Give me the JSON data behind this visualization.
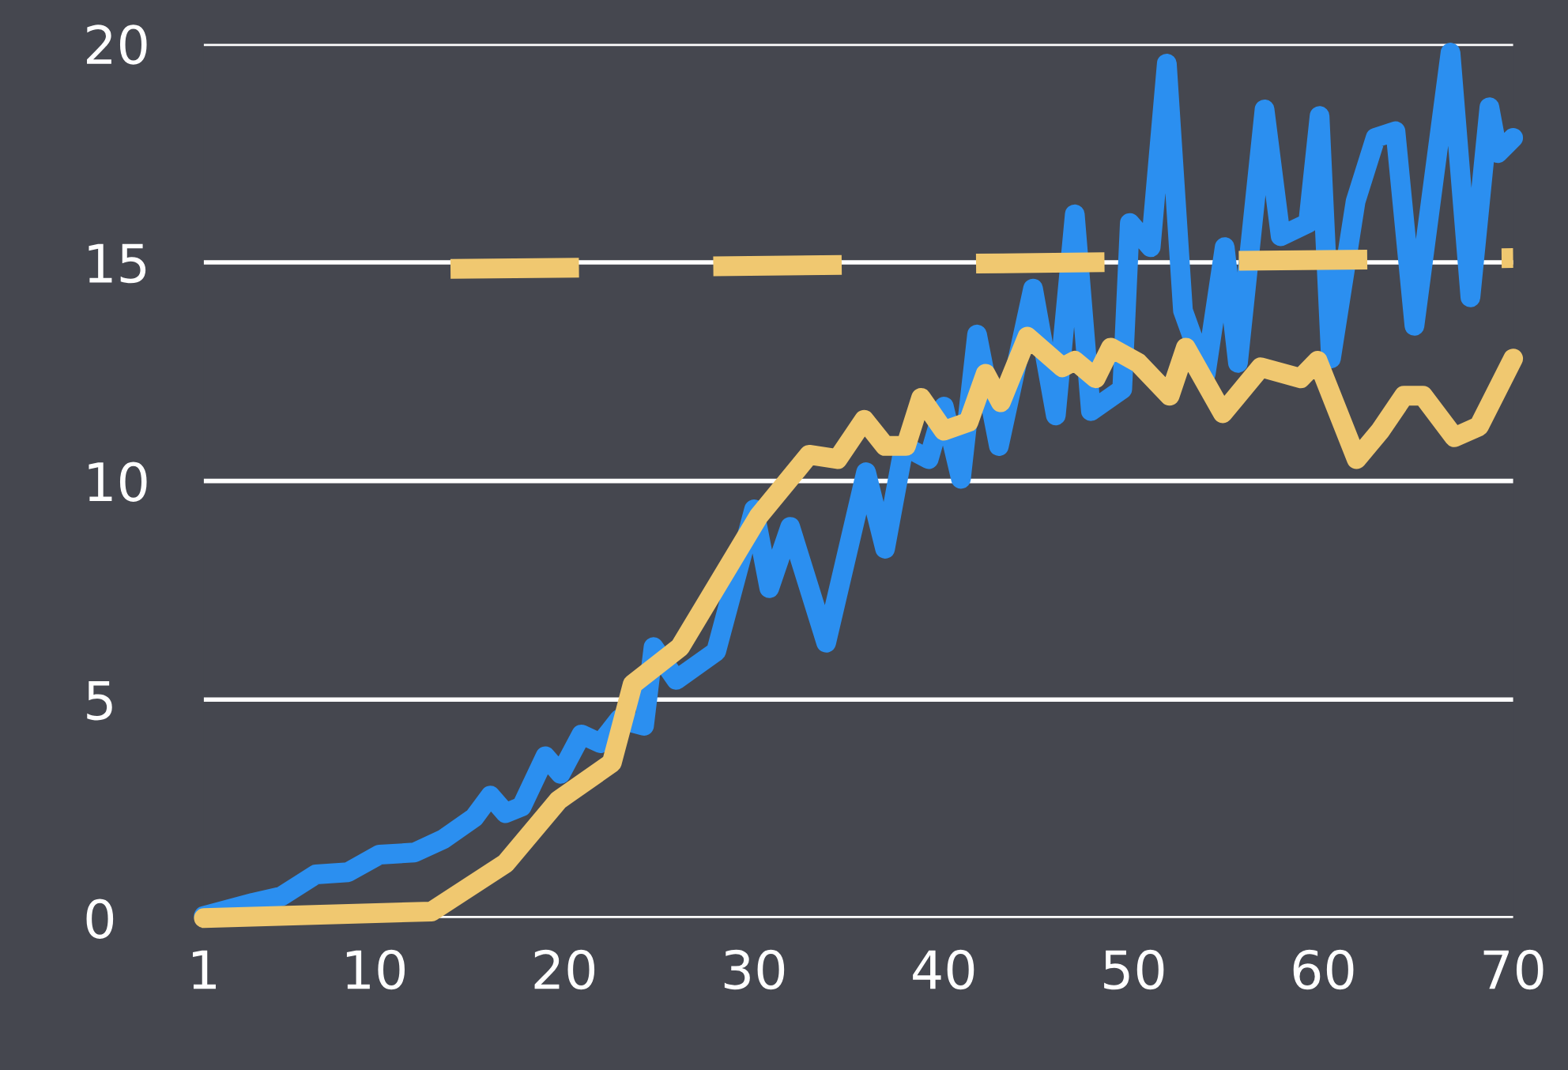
{
  "chart_data": {
    "type": "line",
    "xlim": [
      1,
      70
    ],
    "xticks": [
      1,
      10,
      20,
      30,
      40,
      50,
      60,
      70
    ],
    "ylim": [
      0,
      20
    ],
    "yticks": [
      0,
      5,
      10,
      15,
      20
    ],
    "grid": "y",
    "legend": false,
    "series": [
      {
        "color": "#2b8ff0",
        "x": [
          1,
          3.6,
          5.1,
          6.9,
          8.6,
          10.25,
          12.1,
          13.6,
          15.25,
          16.1,
          16.9,
          17.75,
          19,
          19.8,
          20.9,
          21.9,
          22.9,
          24.2,
          24.7,
          25.9,
          28,
          30,
          30.8,
          31.9,
          33.8,
          35.9,
          36.9,
          37.9,
          39.2,
          40,
          40.9,
          41.75,
          42.9,
          44.7,
          45.9,
          46.9,
          47.75,
          49.4,
          49.8,
          50.9,
          51.75,
          52.6,
          53.8,
          54.8,
          55.5,
          56.9,
          57.75,
          59.2,
          59.8,
          60.4,
          61.7,
          62.75,
          63.8,
          64.8,
          66.7,
          67.75,
          68.75,
          69.2,
          70
        ],
        "values": [
          0.05,
          0.35,
          0.5,
          1.0,
          1.05,
          1.45,
          1.5,
          1.8,
          2.3,
          2.8,
          2.4,
          2.55,
          3.7,
          3.3,
          4.2,
          4.0,
          4.55,
          4.4,
          6.2,
          5.45,
          6.1,
          9.35,
          7.55,
          8.95,
          6.3,
          10.2,
          8.45,
          10.8,
          10.5,
          11.7,
          10.05,
          13.35,
          10.8,
          14.4,
          11.5,
          16.1,
          11.6,
          12.1,
          15.9,
          15.35,
          19.55,
          13.9,
          12.45,
          15.35,
          12.7,
          18.5,
          15.6,
          15.9,
          18.35,
          12.8,
          16.4,
          17.85,
          18.0,
          13.55,
          19.8,
          14.2,
          18.55,
          17.5,
          17.85
        ]
      },
      {
        "color": "#f0c870",
        "x": [
          1,
          13,
          16.9,
          19.7,
          22.5,
          23.6,
          26.1,
          30.25,
          32.9,
          34.4,
          35.8,
          36.9,
          38,
          38.8,
          40,
          41.3,
          42.2,
          43,
          44.4,
          46.25,
          46.9,
          48,
          48.8,
          50.25,
          51.9,
          52.75,
          54.7,
          56.7,
          58.8,
          59.7,
          61.75,
          63,
          64.25,
          65.25,
          66.9,
          68.2,
          70
        ],
        "values": [
          0,
          0.15,
          1.25,
          2.7,
          3.55,
          5.35,
          6.2,
          9.2,
          10.6,
          10.5,
          11.4,
          10.8,
          10.8,
          11.9,
          11.15,
          11.35,
          12.45,
          11.8,
          13.3,
          12.6,
          12.75,
          12.35,
          13.05,
          12.7,
          11.95,
          13.05,
          11.55,
          12.6,
          12.35,
          12.75,
          10.5,
          11.15,
          11.95,
          11.95,
          11.0,
          11.25,
          12.8
        ]
      },
      {
        "color": "#f0c870",
        "line_style": "dashed",
        "x": [
          14,
          70
        ],
        "values": [
          14.85,
          15.1
        ]
      }
    ]
  }
}
